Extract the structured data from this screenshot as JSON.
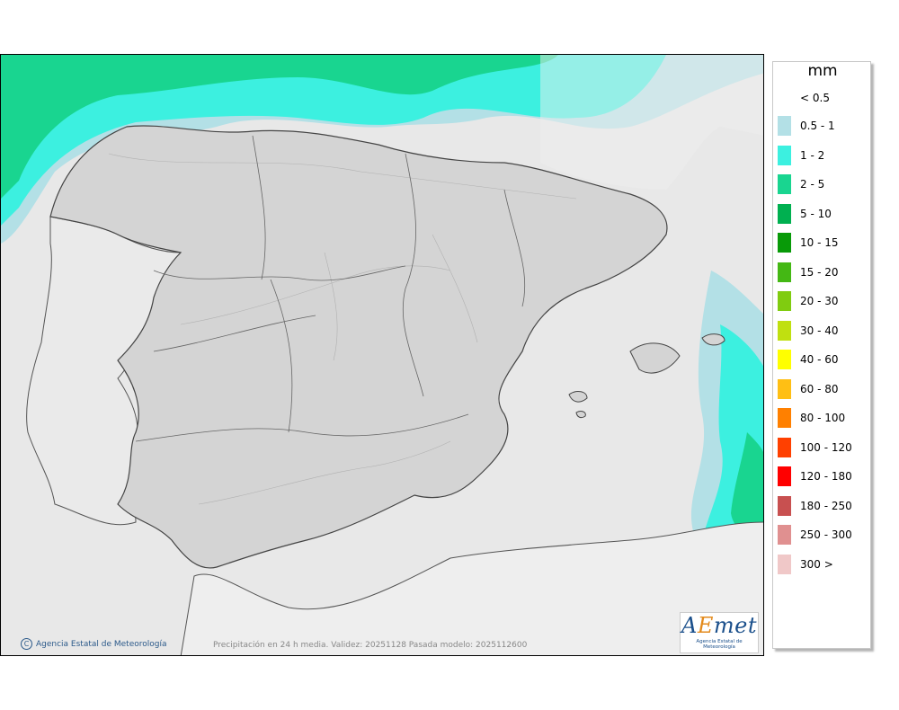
{
  "legend": {
    "unit": "mm",
    "first_label": "< 0.5",
    "items": [
      {
        "label": "0.5 - 1",
        "color": "#b3e0e6"
      },
      {
        "label": "1 - 2",
        "color": "#3cf0e0"
      },
      {
        "label": "2 - 5",
        "color": "#19d590"
      },
      {
        "label": "5 - 10",
        "color": "#00b050"
      },
      {
        "label": "10 - 15",
        "color": "#089a08"
      },
      {
        "label": "15 - 20",
        "color": "#44b814"
      },
      {
        "label": "20 - 30",
        "color": "#80cc10"
      },
      {
        "label": "30 - 40",
        "color": "#c0e010"
      },
      {
        "label": "40 - 60",
        "color": "#ffff00"
      },
      {
        "label": "60 - 80",
        "color": "#ffbf14"
      },
      {
        "label": "80 - 100",
        "color": "#ff8000"
      },
      {
        "label": "100 - 120",
        "color": "#ff4000"
      },
      {
        "label": "120 - 180",
        "color": "#ff0000"
      },
      {
        "label": "180 - 250",
        "color": "#c85050"
      },
      {
        "label": "250 - 300",
        "color": "#e09090"
      },
      {
        "label": "300 >",
        "color": "#f0c8c8"
      }
    ]
  },
  "footer": {
    "copyright": "Agencia Estatal de Meteorología",
    "caption": "Precipitación en 24 h media. Validez: 20251128 Pasada modelo: 2025112600"
  },
  "logo": {
    "brand_a": "A",
    "brand_e": "E",
    "brand_rest": "met",
    "sub": "Agencia Estatal de Meteorología"
  },
  "colors": {
    "sea": "#ececec",
    "land_spain": "#d6d6d6",
    "land_other": "#eeeeee",
    "border": "#333333"
  }
}
